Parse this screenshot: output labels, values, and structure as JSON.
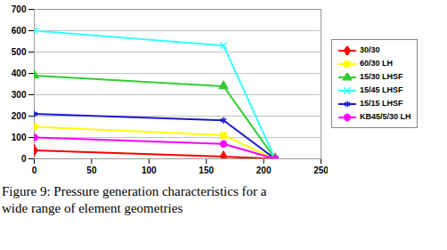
{
  "chart_data": {
    "type": "line",
    "caption": "Figure 9: Pressure generation characteristics for a wide range of element geometries",
    "x": [
      0,
      165,
      210
    ],
    "series": [
      {
        "name": "30/30",
        "color": "#ff0000",
        "marker": "diamond",
        "values": [
          40,
          10,
          0
        ]
      },
      {
        "name": "60/30 LH",
        "color": "#ffff00",
        "marker": "square",
        "values": [
          150,
          110,
          0
        ]
      },
      {
        "name": "15/30 LHSF",
        "color": "#33cc33",
        "marker": "triangle",
        "values": [
          390,
          340,
          0
        ]
      },
      {
        "name": "15/45 LHSF",
        "color": "#33ffff",
        "marker": "times",
        "values": [
          600,
          530,
          0
        ]
      },
      {
        "name": "15/15 LHSF",
        "color": "#1a1acc",
        "marker": "asterisk",
        "values": [
          210,
          180,
          0
        ]
      },
      {
        "name": "KB45/5/30 LH",
        "color": "#ff00ff",
        "marker": "circle",
        "values": [
          100,
          70,
          0
        ]
      }
    ],
    "xlim": [
      0,
      250
    ],
    "xticks": [
      0,
      50,
      100,
      150,
      200,
      250
    ],
    "ylim": [
      0,
      700
    ],
    "yticks": [
      0,
      100,
      200,
      300,
      400,
      500,
      600,
      700
    ],
    "grid": true,
    "legend": "right"
  }
}
